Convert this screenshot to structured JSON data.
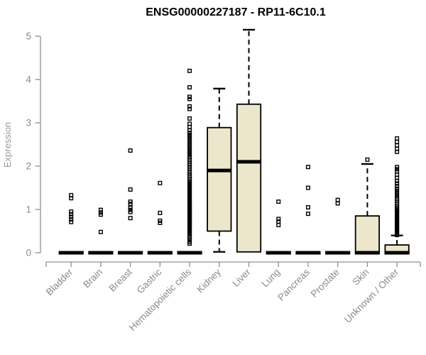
{
  "chart_data": {
    "type": "boxplot",
    "title": "ENSG00000227187 - RP11-6C10.1",
    "ylabel": "Expression",
    "xlabel": "",
    "ylim": [
      0,
      5.2
    ],
    "yticks": [
      0,
      1,
      2,
      3,
      4,
      5
    ],
    "grid": false,
    "legend": "none",
    "categories": [
      "Bladder",
      "Brain",
      "Breast",
      "Gastric",
      "Hematopoietic cells",
      "Kidney",
      "Liver",
      "Lung",
      "Pancreas",
      "Prostate",
      "Skin",
      "Unknown / Other"
    ],
    "colors": {
      "box_fill": "#ECE7CC",
      "box_stroke": "#000000",
      "median": "#000000",
      "whisker": "#000000",
      "outlier": "#000000",
      "axis": "#909090",
      "tick_label": "#8a8a8a",
      "axis_label": "#9a9a9a",
      "title": "#000000",
      "background": "#ffffff"
    },
    "boxes": [
      {
        "name": "Bladder",
        "q1": 0,
        "median": 0,
        "q3": 0,
        "whisker_low": 0,
        "whisker_high": 0,
        "outliers": [
          0.71,
          0.77,
          0.83,
          0.89,
          0.95,
          1.26,
          1.33
        ]
      },
      {
        "name": "Brain",
        "q1": 0,
        "median": 0,
        "q3": 0,
        "whisker_low": 0,
        "whisker_high": 0,
        "outliers": [
          0.48,
          0.88,
          0.93,
          0.99
        ]
      },
      {
        "name": "Breast",
        "q1": 0,
        "median": 0,
        "q3": 0,
        "whisker_low": 0,
        "whisker_high": 0,
        "outliers": [
          0.8,
          0.94,
          0.99,
          1.04,
          1.13,
          1.18,
          1.46,
          2.36
        ]
      },
      {
        "name": "Gastric",
        "q1": 0,
        "median": 0,
        "q3": 0,
        "whisker_low": 0,
        "whisker_high": 0,
        "outliers": [
          0.69,
          0.74,
          0.92,
          1.61
        ]
      },
      {
        "name": "Hematopoietic cells",
        "q1": 0,
        "median": 0,
        "q3": 0,
        "whisker_low": 0,
        "whisker_high": 0,
        "outliers": [
          0.21,
          0.25,
          0.31,
          0.35,
          0.38,
          0.42,
          0.45,
          0.48,
          0.51,
          0.54,
          0.57,
          0.6,
          0.62,
          0.64,
          0.66,
          0.68,
          0.7,
          0.72,
          0.74,
          0.76,
          0.78,
          0.8,
          0.82,
          0.84,
          0.86,
          0.88,
          0.9,
          0.92,
          0.94,
          0.96,
          0.98,
          1.0,
          1.02,
          1.04,
          1.06,
          1.08,
          1.1,
          1.12,
          1.15,
          1.18,
          1.21,
          1.24,
          1.27,
          1.3,
          1.33,
          1.36,
          1.39,
          1.42,
          1.45,
          1.48,
          1.51,
          1.54,
          1.57,
          1.6,
          1.63,
          1.66,
          1.7,
          1.74,
          1.78,
          1.82,
          1.86,
          1.9,
          1.94,
          1.98,
          2.02,
          2.06,
          2.1,
          2.14,
          2.18,
          2.22,
          2.27,
          2.32,
          2.37,
          2.42,
          2.47,
          2.52,
          2.57,
          2.62,
          2.67,
          2.72,
          2.77,
          2.83,
          2.9,
          2.98,
          3.1,
          3.32,
          3.38,
          3.55,
          3.6,
          3.82,
          4.2
        ]
      },
      {
        "name": "Kidney",
        "q1": 0.5,
        "median": 1.9,
        "q3": 2.89,
        "whisker_low": 0.02,
        "whisker_high": 3.79,
        "outliers": []
      },
      {
        "name": "Liver",
        "q1": 0.02,
        "median": 2.1,
        "q3": 3.43,
        "whisker_low": 0.02,
        "whisker_high": 5.15,
        "outliers": []
      },
      {
        "name": "Lung",
        "q1": 0,
        "median": 0,
        "q3": 0,
        "whisker_low": 0,
        "whisker_high": 0,
        "outliers": [
          0.64,
          0.72,
          0.78,
          1.18
        ]
      },
      {
        "name": "Pancreas",
        "q1": 0,
        "median": 0,
        "q3": 0,
        "whisker_low": 0,
        "whisker_high": 0,
        "outliers": [
          0.9,
          1.05,
          1.5,
          1.98
        ]
      },
      {
        "name": "Prostate",
        "q1": 0,
        "median": 0,
        "q3": 0,
        "whisker_low": 0,
        "whisker_high": 0,
        "outliers": [
          1.14,
          1.22
        ]
      },
      {
        "name": "Skin",
        "q1": 0,
        "median": 0,
        "q3": 0.85,
        "whisker_low": 0,
        "whisker_high": 2.05,
        "outliers": [
          2.15
        ]
      },
      {
        "name": "Unknown / Other",
        "q1": 0,
        "median": 0,
        "q3": 0.18,
        "whisker_low": 0,
        "whisker_high": 0.4,
        "outliers": [
          0.41,
          0.44,
          0.47,
          0.5,
          0.53,
          0.56,
          0.59,
          0.62,
          0.65,
          0.68,
          0.71,
          0.74,
          0.77,
          0.8,
          0.83,
          0.86,
          0.89,
          0.92,
          0.95,
          0.98,
          1.01,
          1.04,
          1.08,
          1.12,
          1.16,
          1.2,
          1.24,
          1.28,
          1.33,
          1.38,
          1.43,
          1.48,
          1.54,
          1.6,
          1.66,
          1.73,
          1.8,
          1.88,
          1.93,
          1.98,
          2.33,
          2.4,
          2.48,
          2.56,
          2.64
        ]
      }
    ]
  }
}
